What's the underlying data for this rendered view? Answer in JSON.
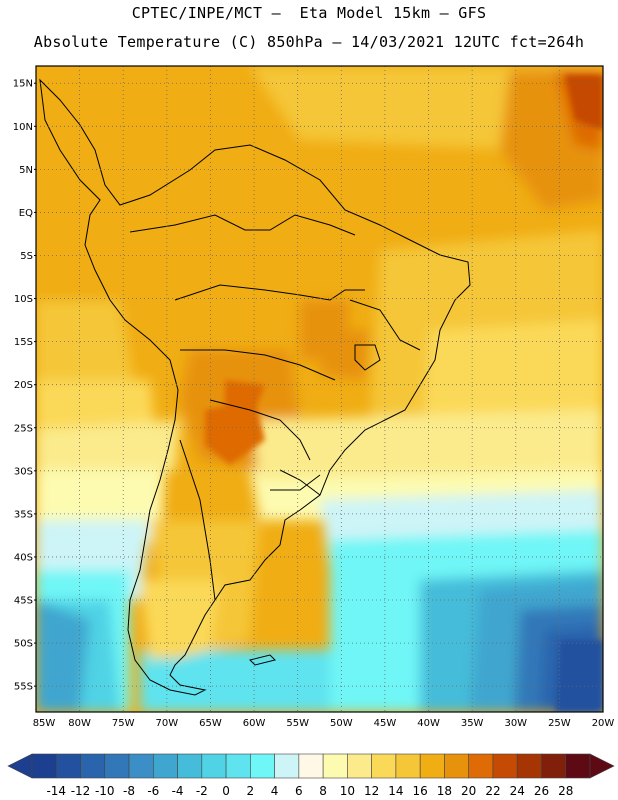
{
  "header": {
    "line1": "CPTEC/INPE/MCT —  Eta Model 15km — GFS",
    "line2": "Absolute Temperature (C) 850hPa — 14/03/2021 12UTC fct=264h"
  },
  "map": {
    "lat_labels": [
      "15N",
      "10N",
      "5N",
      "EQ",
      "5S",
      "10S",
      "15S",
      "20S",
      "25S",
      "30S",
      "35S",
      "40S",
      "45S",
      "50S",
      "55S"
    ],
    "lat_values": [
      15,
      10,
      5,
      0,
      -5,
      -10,
      -15,
      -20,
      -25,
      -30,
      -35,
      -40,
      -45,
      -50,
      -55
    ],
    "lon_labels": [
      "85W",
      "80W",
      "75W",
      "70W",
      "65W",
      "60W",
      "55W",
      "50W",
      "45W",
      "40W",
      "35W",
      "30W",
      "25W",
      "20W"
    ],
    "lon_values": [
      -85,
      -80,
      -75,
      -70,
      -65,
      -60,
      -55,
      -50,
      -45,
      -40,
      -35,
      -30,
      -25,
      -20
    ],
    "lat_range": [
      -58,
      17
    ],
    "lon_range": [
      -85,
      -20
    ],
    "grid": "dotted"
  },
  "colorbar": {
    "labels": [
      "-14",
      "-12",
      "-10",
      "-8",
      "-6",
      "-4",
      "-2",
      "0",
      "2",
      "4",
      "6",
      "8",
      "10",
      "12",
      "14",
      "16",
      "18",
      "20",
      "22",
      "24",
      "26",
      "28"
    ],
    "colors": [
      "#1d3f8f",
      "#24519f",
      "#2a64ad",
      "#3278b8",
      "#3b8fc6",
      "#3fa6cf",
      "#45bcd9",
      "#4fd3e5",
      "#5fe3ef",
      "#6ff6f6",
      "#cdf4f7",
      "#fff8e6",
      "#fdfbb0",
      "#fbeb8c",
      "#fbd958",
      "#f5c637",
      "#f0ad14",
      "#e7920c",
      "#de6b05",
      "#c54a04",
      "#a53503",
      "#81200a",
      "#5e0a14"
    ],
    "unit": "C"
  }
}
